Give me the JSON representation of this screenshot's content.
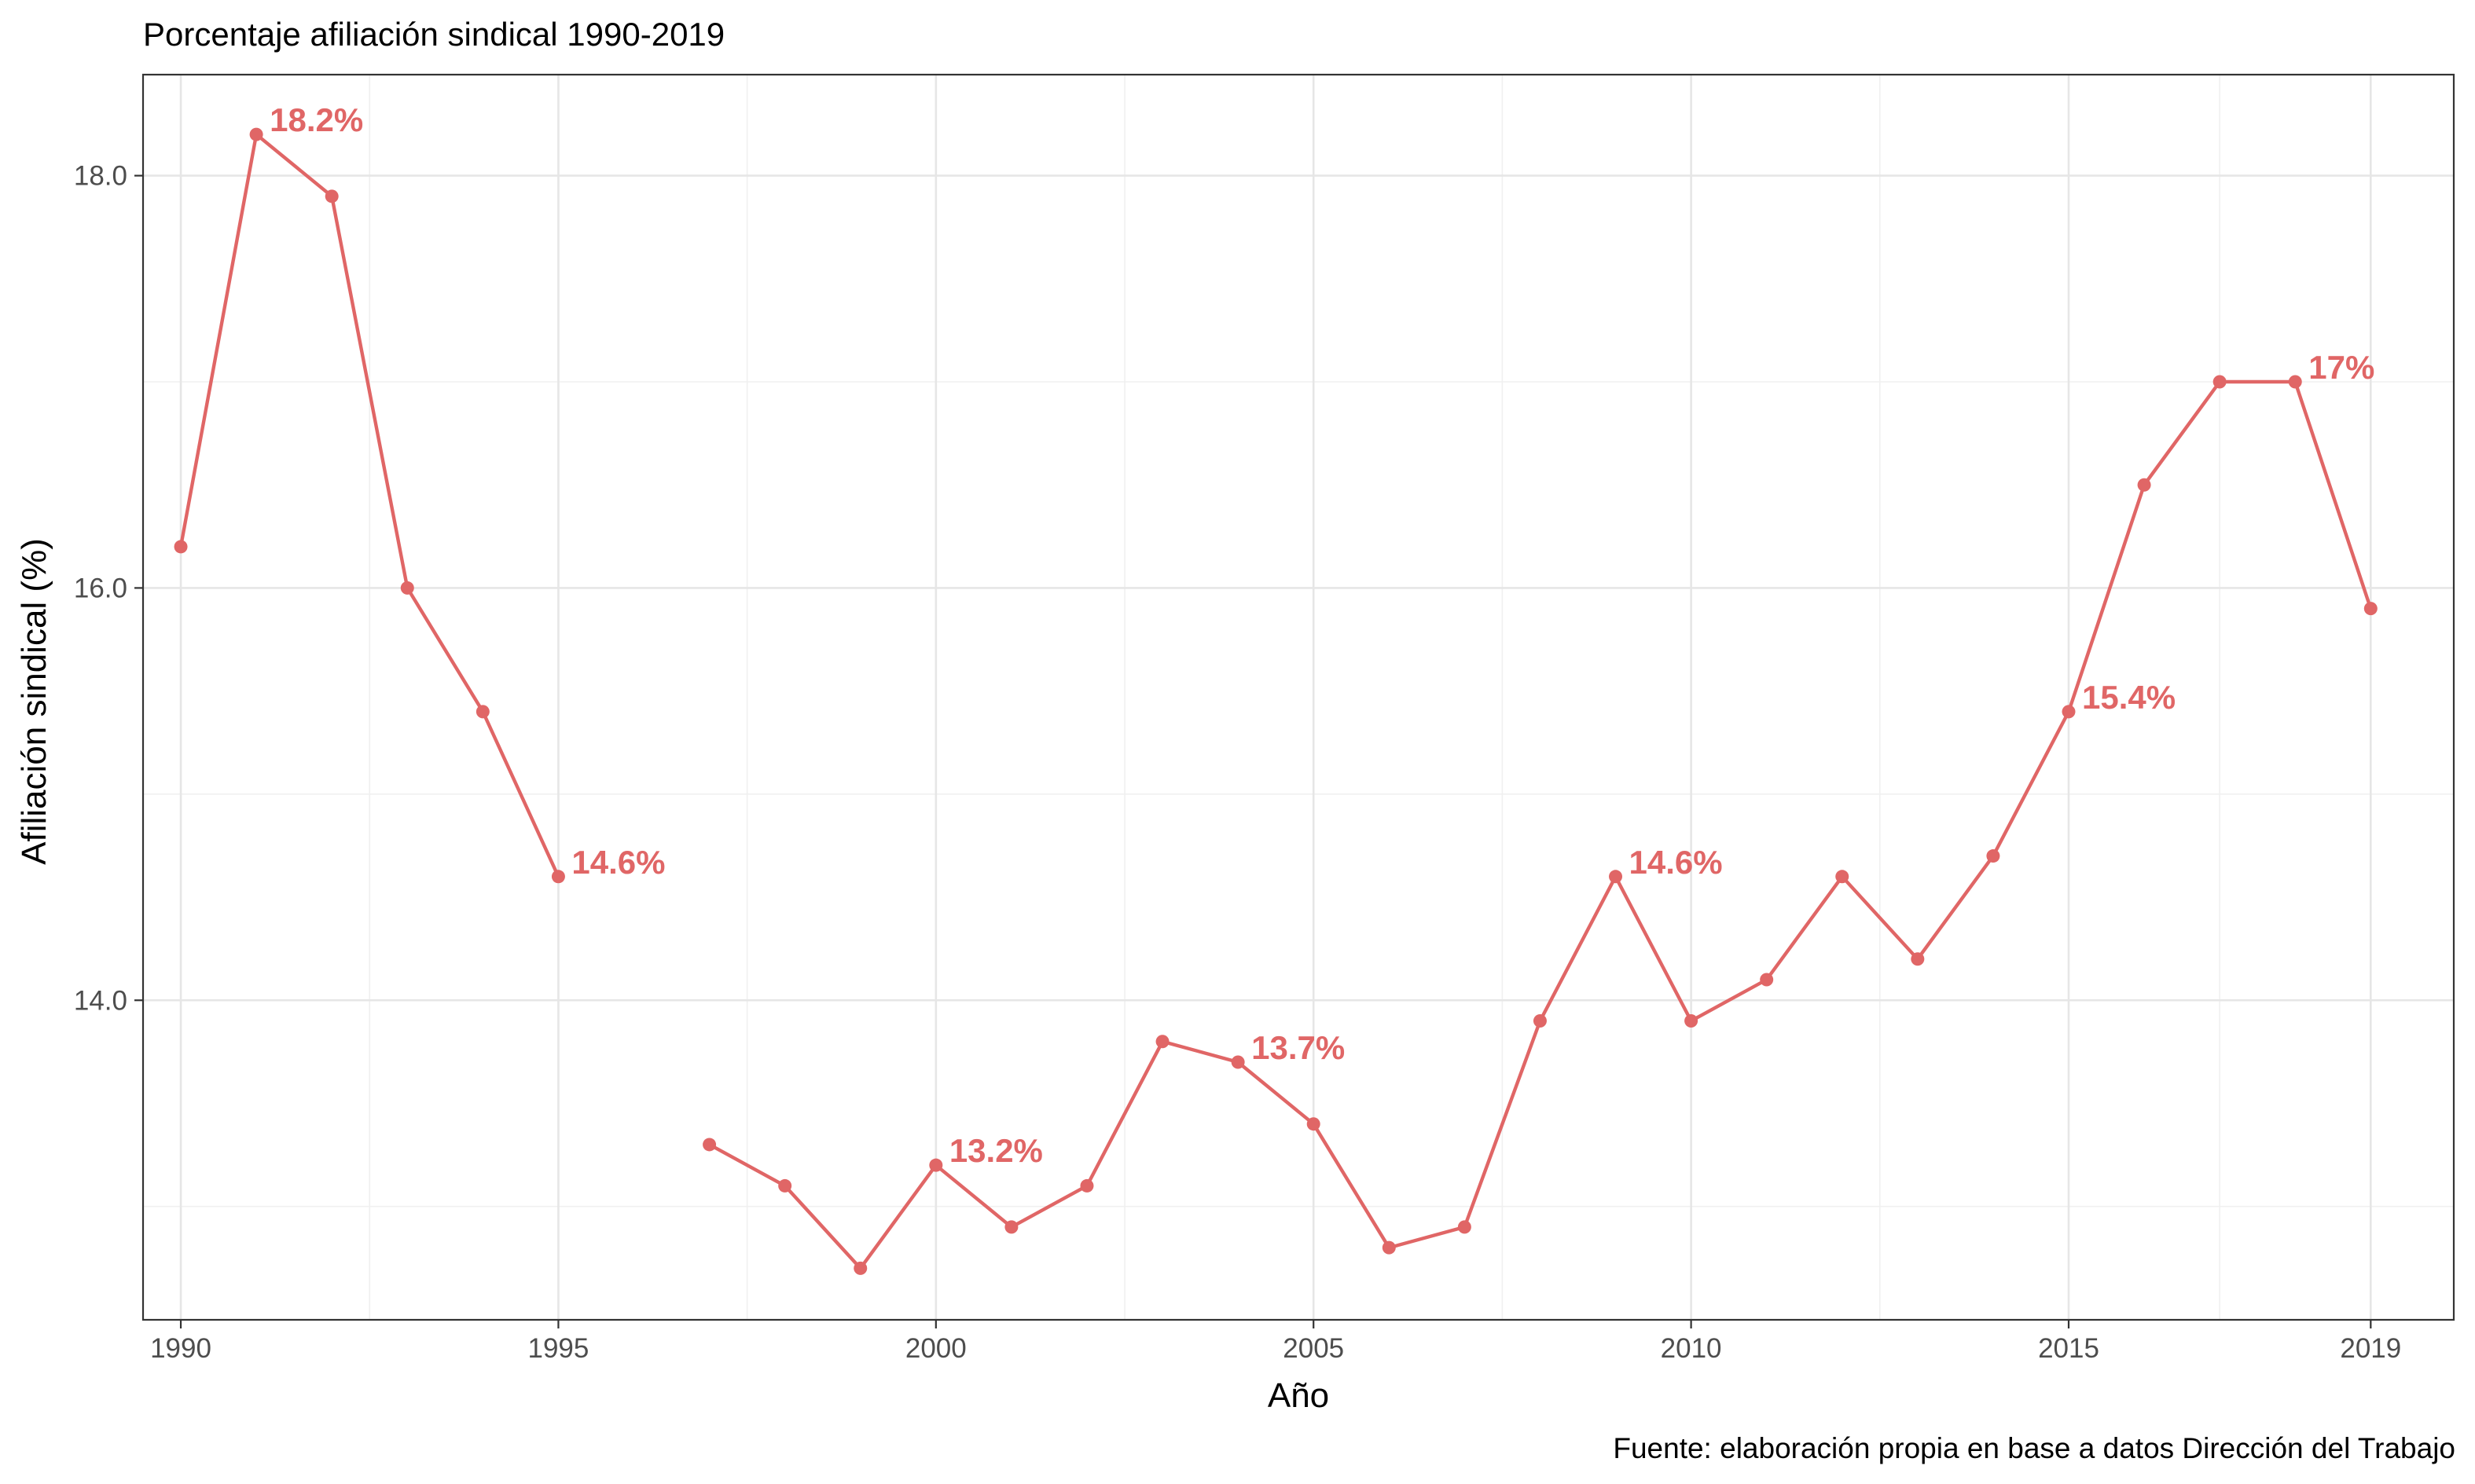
{
  "chart_data": {
    "type": "line",
    "title": "Porcentaje afiliación sindical 1990-2019",
    "xlabel": "Año",
    "ylabel": "Afiliación sindical (%)",
    "caption": "Fuente: elaboración propia en base a datos Dirección del Trabajo",
    "xlim": [
      1989.5,
      2020.1
    ],
    "ylim": [
      12.45,
      18.49
    ],
    "x_ticks": [
      1990,
      1995,
      2000,
      2005,
      2010,
      2015,
      2019
    ],
    "x_tick_labels": [
      "1990",
      "1995",
      "2000",
      "2005",
      "2010",
      "2015",
      "2019"
    ],
    "x_minor_ticks": [
      1992.5,
      1997.5,
      2002.5,
      2007.5,
      2012.5,
      2017
    ],
    "y_ticks": [
      14,
      16,
      18
    ],
    "y_tick_labels": [
      "14.0",
      "16.0",
      "18.0"
    ],
    "y_minor_ticks": [
      13,
      15,
      17
    ],
    "grid": true,
    "line_color": "#e06666",
    "segments": [
      {
        "x": [
          1990,
          1991,
          1992,
          1993,
          1994,
          1995
        ],
        "y": [
          16.2,
          18.2,
          17.9,
          16.0,
          15.4,
          14.6
        ]
      },
      {
        "x": [
          1997,
          1998,
          1999,
          2000,
          2001,
          2002,
          2003,
          2004,
          2005,
          2006,
          2007,
          2008,
          2009,
          2010,
          2011,
          2012,
          2013,
          2014,
          2015,
          2016,
          2017,
          2018,
          2019
        ],
        "y": [
          13.3,
          13.1,
          12.7,
          13.2,
          12.9,
          13.1,
          13.8,
          13.7,
          13.4,
          12.8,
          12.9,
          13.9,
          14.6,
          13.9,
          14.1,
          14.6,
          14.2,
          14.7,
          15.4,
          16.5,
          17.0,
          17.0,
          15.9
        ]
      }
    ],
    "annotations": [
      {
        "x": 1991,
        "y": 18.2,
        "text": "18.2%"
      },
      {
        "x": 1995,
        "y": 14.6,
        "text": "14.6%"
      },
      {
        "x": 2000,
        "y": 13.2,
        "text": "13.2%"
      },
      {
        "x": 2004,
        "y": 13.7,
        "text": "13.7%"
      },
      {
        "x": 2009,
        "y": 14.6,
        "text": "14.6%"
      },
      {
        "x": 2015,
        "y": 15.4,
        "text": "15.4%"
      },
      {
        "x": 2018,
        "y": 17.0,
        "text": "17%"
      }
    ]
  }
}
